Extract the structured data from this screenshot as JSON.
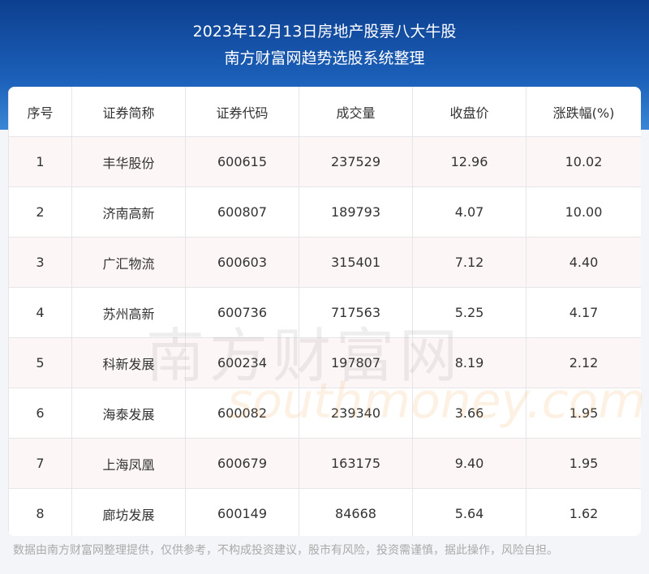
{
  "header": {
    "title": "2023年12月13日房地产股票八大牛股",
    "subtitle": "南方财富网趋势选股系统整理"
  },
  "table": {
    "columns": [
      "序号",
      "证券简称",
      "证券代码",
      "成交量",
      "收盘价",
      "涨跌幅(%)"
    ],
    "rows": [
      [
        "1",
        "丰华股份",
        "600615",
        "237529",
        "12.96",
        "10.02"
      ],
      [
        "2",
        "济南高新",
        "600807",
        "189793",
        "4.07",
        "10.00"
      ],
      [
        "3",
        "广汇物流",
        "600603",
        "315401",
        "7.12",
        "4.40"
      ],
      [
        "4",
        "苏州高新",
        "600736",
        "717563",
        "5.25",
        "4.17"
      ],
      [
        "5",
        "科新发展",
        "600234",
        "197807",
        "8.19",
        "2.12"
      ],
      [
        "6",
        "海泰发展",
        "600082",
        "239340",
        "3.66",
        "1.95"
      ],
      [
        "7",
        "上海凤凰",
        "600679",
        "163175",
        "9.40",
        "1.95"
      ],
      [
        "8",
        "廊坊发展",
        "600149",
        "84668",
        "5.64",
        "1.62"
      ]
    ]
  },
  "watermark": {
    "cn": "南方财富网",
    "en": "southmoney.com"
  },
  "footer": "数据由南方财富网整理提供，仅供参考，不构成投资建议，股市有风险，投资需谨慎，据此操作，风险自担。"
}
